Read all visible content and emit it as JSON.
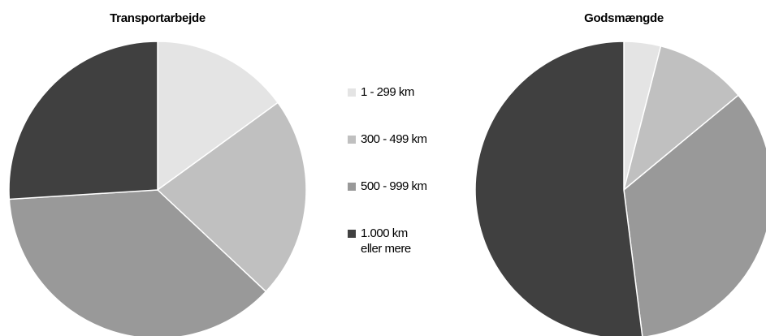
{
  "chart_data": [
    {
      "type": "pie",
      "title": "Transportarbejde",
      "categories": [
        "1 - 299 km",
        "300 - 499 km",
        "500 - 999 km",
        "1.000 km\neller mere"
      ],
      "values": [
        15,
        22,
        37,
        26
      ],
      "colors": [
        "#e4e4e4",
        "#c0c0c0",
        "#999999",
        "#404040"
      ],
      "legend": "center"
    },
    {
      "type": "pie",
      "title": "Godsmængde",
      "categories": [
        "1 - 299 km",
        "300 - 499 km",
        "500 - 999 km",
        "1.000 km\neller mere"
      ],
      "values": [
        4,
        10,
        34,
        52
      ],
      "colors": [
        "#e4e4e4",
        "#c0c0c0",
        "#999999",
        "#404040"
      ]
    }
  ]
}
